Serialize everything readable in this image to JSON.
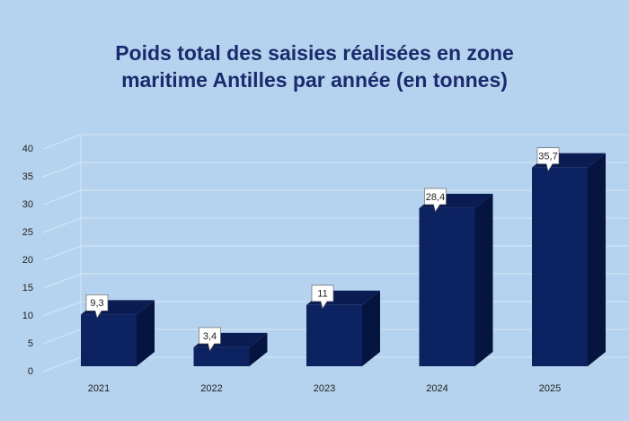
{
  "chart_data": {
    "type": "bar",
    "title": "Poids total des saisies réalisées en zone maritime Antilles par année (en tonnes)",
    "categories": [
      "2021",
      "2022",
      "2023",
      "2024",
      "2025"
    ],
    "values": [
      9.3,
      3.4,
      11,
      28.4,
      35.7
    ],
    "value_labels": [
      "9,3",
      "3,4",
      "11",
      "28,4",
      "35,7"
    ],
    "color": "#0d2260",
    "ylim": [
      0,
      40
    ],
    "yticks": [
      0,
      5,
      10,
      15,
      20,
      25,
      30,
      35,
      40
    ],
    "grid": true
  }
}
